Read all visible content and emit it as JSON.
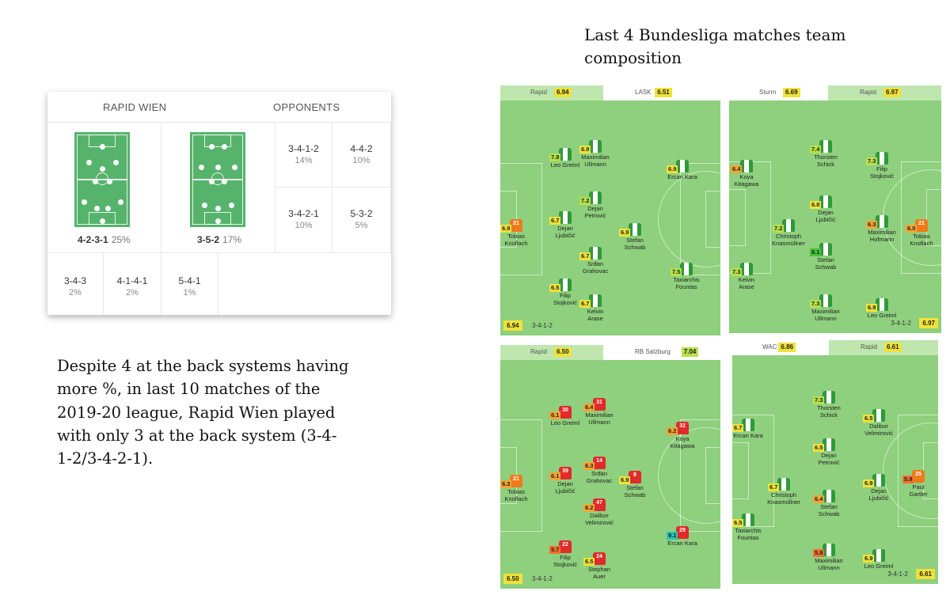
{
  "heading": [
    "Last 4 Bundesliga matches team",
    "composition"
  ],
  "caption": [
    "Despite 4 at the back systems having",
    "more %, in last 10 matches of the",
    "2019-20 league, Rapid Wien played",
    "with only 3 at the back system (3-4-",
    "1-2/3-4-2-1)."
  ],
  "formation_card": {
    "tab_left": "RAPID WIEN",
    "tab_right": "OPPONENTS",
    "main": [
      {
        "name": "4-2-3-1",
        "pct": "25%"
      },
      {
        "name": "3-5-2",
        "pct": "17%"
      }
    ],
    "small": [
      {
        "name": "3-4-1-2",
        "pct": "14%"
      },
      {
        "name": "4-4-2",
        "pct": "10%"
      },
      {
        "name": "3-4-2-1",
        "pct": "10%"
      },
      {
        "name": "5-3-2",
        "pct": "5%"
      },
      {
        "name": "3-4-3",
        "pct": "2%"
      },
      {
        "name": "4-1-4-1",
        "pct": "2%"
      },
      {
        "name": "5-4-1",
        "pct": "1%"
      }
    ]
  },
  "colors": {
    "green_shirt": "#2e9a3a",
    "orange_shirt": "#f07a1a",
    "red_shirt": "#e12a2a",
    "field": "#8ed07d"
  },
  "lineups": [
    {
      "home_team": "Rapid",
      "home_rating": "6.94",
      "away_team": "LASK",
      "away_rating": "6.51",
      "footer_rating": "6.94",
      "footer_formation": "3-4-1-2",
      "players": [
        {
          "name1": "Tobias",
          "name2": "Knoflach",
          "rating": "6.9",
          "num": "21"
        },
        {
          "name1": "Leo Greiml",
          "name2": "",
          "rating": "7.8",
          "num": ""
        },
        {
          "name1": "Dejan",
          "name2": "Ljubičić",
          "rating": "6.7",
          "num": ""
        },
        {
          "name1": "Filip",
          "name2": "Stojković",
          "rating": "6.5",
          "num": ""
        },
        {
          "name1": "Maximilian",
          "name2": "Ullmann",
          "rating": "6.9",
          "num": ""
        },
        {
          "name1": "Dejan",
          "name2": "Petrović",
          "rating": "7.2",
          "num": ""
        },
        {
          "name1": "Srđan",
          "name2": "Grahovac",
          "rating": "6.7",
          "num": ""
        },
        {
          "name1": "Kelvin",
          "name2": "Arase",
          "rating": "6.7",
          "num": ""
        },
        {
          "name1": "Stefan",
          "name2": "Schwab",
          "rating": "6.9",
          "num": ""
        },
        {
          "name1": "Ercan Kara",
          "name2": "",
          "rating": "6.9",
          "num": ""
        },
        {
          "name1": "Taxiarchis",
          "name2": "Fountas",
          "rating": "7.5",
          "num": ""
        }
      ]
    },
    {
      "home_team": "Sturm",
      "home_rating": "6.69",
      "away_team": "Rapid",
      "away_rating": "6.97",
      "footer_rating": "6.97",
      "footer_formation": "3-4-1-2",
      "players": [
        {
          "name1": "Tobias",
          "name2": "Knoflach",
          "rating": "6.0",
          "num": "21"
        },
        {
          "name1": "Filip",
          "name2": "Stojković",
          "rating": "7.3",
          "num": ""
        },
        {
          "name1": "Maximilian",
          "name2": "Hofmann",
          "rating": "6.3",
          "num": ""
        },
        {
          "name1": "Leo Greiml",
          "name2": "",
          "rating": "6.9",
          "num": ""
        },
        {
          "name1": "Thorsten",
          "name2": "Schick",
          "rating": "7.4",
          "num": ""
        },
        {
          "name1": "Dejan",
          "name2": "Ljubičić",
          "rating": "6.8",
          "num": ""
        },
        {
          "name1": "Stefan",
          "name2": "Schwab",
          "rating": "8.1",
          "num": ""
        },
        {
          "name1": "Maximilian",
          "name2": "Ullmann",
          "rating": "7.3",
          "num": ""
        },
        {
          "name1": "Christoph",
          "name2": "Knasmüllner",
          "rating": "7.2",
          "num": ""
        },
        {
          "name1": "Koya",
          "name2": "Kitagawa",
          "rating": "6.4",
          "num": ""
        },
        {
          "name1": "Kelvin",
          "name2": "Arase",
          "rating": "7.3",
          "num": ""
        }
      ]
    },
    {
      "home_team": "Rapid",
      "home_rating": "6.50",
      "away_team": "RB Salzburg",
      "away_rating": "7.04",
      "footer_rating": "6.50",
      "footer_formation": "3-4-1-2",
      "players": [
        {
          "name1": "Tobias",
          "name2": "Knoflach",
          "rating": "6.3",
          "num": "21"
        },
        {
          "name1": "Leo Greiml",
          "name2": "",
          "rating": "6.1",
          "num": "30"
        },
        {
          "name1": "Dejan",
          "name2": "Ljubičić",
          "rating": "6.1",
          "num": "39"
        },
        {
          "name1": "Filip",
          "name2": "Stojković",
          "rating": "5.7",
          "num": "22"
        },
        {
          "name1": "Maximilian",
          "name2": "Ullmann",
          "rating": "6.4",
          "num": "31"
        },
        {
          "name1": "Srđan",
          "name2": "Grahovac",
          "rating": "6.3",
          "num": "14"
        },
        {
          "name1": "Dalibor",
          "name2": "Velimirović",
          "rating": "6.2",
          "num": "47"
        },
        {
          "name1": "Stephan",
          "name2": "Auer",
          "rating": "6.5",
          "num": "24"
        },
        {
          "name1": "Stefan",
          "name2": "Schwab",
          "rating": "6.9",
          "num": "8"
        },
        {
          "name1": "Koya",
          "name2": "Kitagawa",
          "rating": "6.2",
          "num": "32"
        },
        {
          "name1": "Ercan Kara",
          "name2": "",
          "rating": "9.1",
          "num": "29"
        }
      ]
    },
    {
      "home_team": "WAC",
      "home_rating": "6.86",
      "away_team": "Rapid",
      "away_rating": "6.61",
      "footer_rating": "6.61",
      "footer_formation": "3-4-1-2",
      "players": [
        {
          "name1": "Paul",
          "name2": "Gartler",
          "rating": "5.9",
          "num": "25"
        },
        {
          "name1": "Dalibor",
          "name2": "Velimirović",
          "rating": "6.5",
          "num": ""
        },
        {
          "name1": "Dejan",
          "name2": "Ljubičić",
          "rating": "6.9",
          "num": ""
        },
        {
          "name1": "Leo Greiml",
          "name2": "",
          "rating": "6.9",
          "num": ""
        },
        {
          "name1": "Thorsten",
          "name2": "Schick",
          "rating": "7.3",
          "num": ""
        },
        {
          "name1": "Dejan",
          "name2": "Petrović",
          "rating": "6.5",
          "num": ""
        },
        {
          "name1": "Stefan",
          "name2": "Schwab",
          "rating": "6.4",
          "num": ""
        },
        {
          "name1": "Maximilian",
          "name2": "Ullmann",
          "rating": "5.8",
          "num": ""
        },
        {
          "name1": "Christoph",
          "name2": "Knasmüllner",
          "rating": "6.7",
          "num": ""
        },
        {
          "name1": "Ercan Kara",
          "name2": "",
          "rating": "6.7",
          "num": ""
        },
        {
          "name1": "Taxiarchis",
          "name2": "Fountas",
          "rating": "6.5",
          "num": ""
        }
      ]
    }
  ]
}
